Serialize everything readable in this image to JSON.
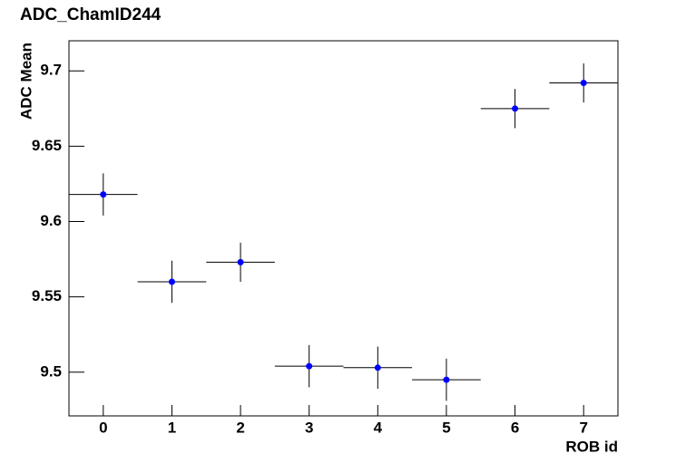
{
  "chart_data": {
    "type": "scatter",
    "title": "ADC_ChamID244",
    "x_label": "ROB id",
    "y_label": "ADC Mean",
    "x": [
      0,
      1,
      2,
      3,
      4,
      5,
      6,
      7
    ],
    "values": [
      9.618,
      9.56,
      9.573,
      9.504,
      9.503,
      9.495,
      9.675,
      9.692
    ],
    "yerr": [
      0.014,
      0.014,
      0.013,
      0.014,
      0.014,
      0.014,
      0.013,
      0.013
    ],
    "xerr": [
      0.5,
      0.5,
      0.5,
      0.5,
      0.5,
      0.5,
      0.5,
      0.5
    ],
    "color": "#0000ff",
    "xlim": [
      -0.5,
      7.5
    ],
    "xticks": [
      0,
      1,
      2,
      3,
      4,
      5,
      6,
      7
    ],
    "ylim": [
      9.471,
      9.72
    ],
    "yticks": [
      9.5,
      9.55,
      9.6,
      9.65,
      9.7
    ]
  }
}
